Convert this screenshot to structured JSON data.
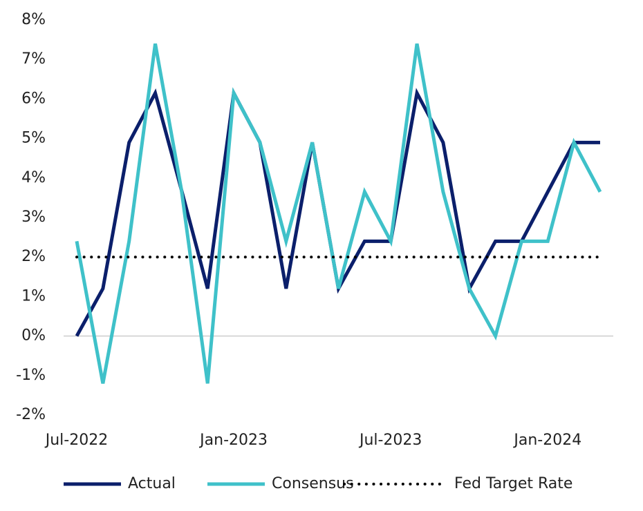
{
  "chart_data": {
    "type": "line",
    "categories": [
      "Jul-2022",
      null,
      null,
      null,
      null,
      null,
      "Jan-2023",
      null,
      null,
      null,
      null,
      null,
      "Jul-2023",
      null,
      null,
      null,
      null,
      null,
      "Jan-2024",
      null,
      null
    ],
    "series": [
      {
        "name": "Actual",
        "color": "#0b1f6b",
        "style": "solid",
        "values": [
          0,
          1.2,
          4.9,
          6.15,
          3.7,
          1.2,
          6.15,
          4.9,
          1.2,
          4.9,
          1.2,
          2.4,
          2.4,
          6.15,
          4.9,
          1.2,
          2.4,
          2.4,
          3.65,
          4.9,
          4.9
        ]
      },
      {
        "name": "Consensus",
        "color": "#3fc1c9",
        "style": "solid",
        "values": [
          2.4,
          -1.2,
          2.4,
          7.4,
          3.7,
          -1.2,
          6.15,
          4.9,
          2.4,
          4.9,
          1.2,
          3.65,
          2.4,
          7.4,
          3.65,
          1.2,
          0,
          2.4,
          2.4,
          4.9,
          3.65
        ]
      },
      {
        "name": "Fed Target Rate",
        "color": "#000000",
        "style": "dotted",
        "values": [
          2,
          2,
          2,
          2,
          2,
          2,
          2,
          2,
          2,
          2,
          2,
          2,
          2,
          2,
          2,
          2,
          2,
          2,
          2,
          2,
          2
        ]
      }
    ],
    "ylim": [
      -2,
      8
    ],
    "yticks": [
      {
        "value": -2,
        "label": "-2%"
      },
      {
        "value": -1,
        "label": "-1%"
      },
      {
        "value": 0,
        "label": "0%"
      },
      {
        "value": 1,
        "label": "1%"
      },
      {
        "value": 2,
        "label": "2%"
      },
      {
        "value": 3,
        "label": "3%"
      },
      {
        "value": 4,
        "label": "4%"
      },
      {
        "value": 5,
        "label": "5%"
      },
      {
        "value": 6,
        "label": "6%"
      },
      {
        "value": 7,
        "label": "7%"
      },
      {
        "value": 8,
        "label": "8%"
      }
    ],
    "zero_line": true,
    "legend": "bottom"
  }
}
